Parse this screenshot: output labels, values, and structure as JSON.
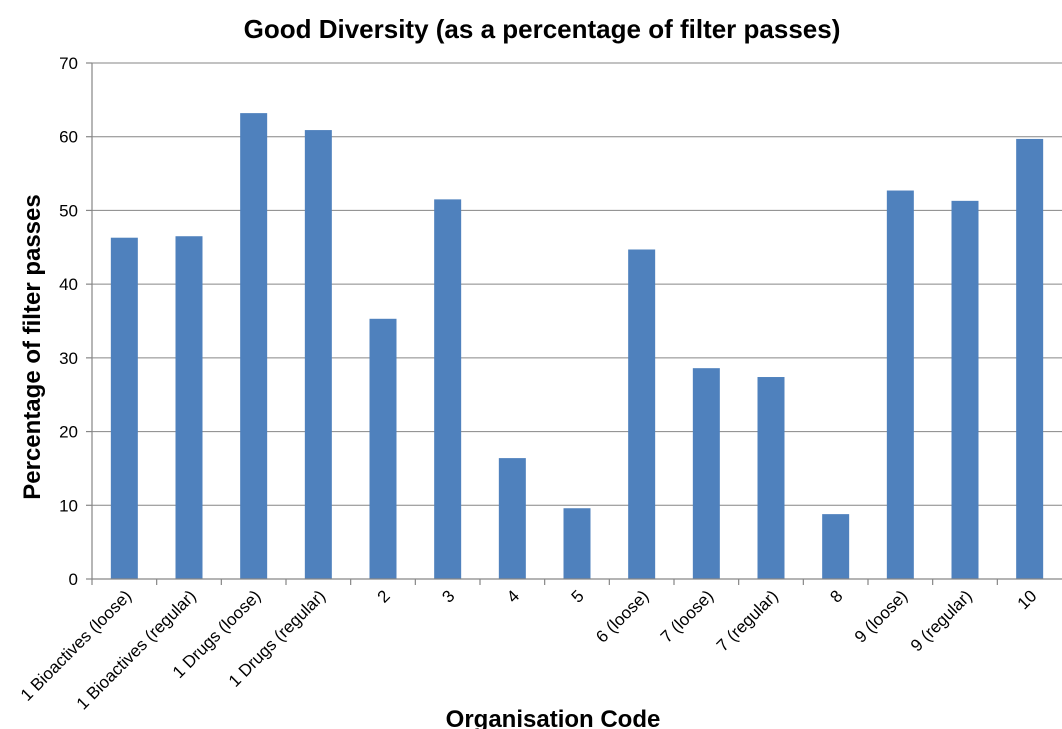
{
  "chart_data": {
    "type": "bar",
    "title": "Good Diversity (as a percentage of filter passes)",
    "xlabel": "Organisation Code",
    "ylabel": "Percentage of filter passes",
    "categories": [
      "1 Bioactives (loose)",
      "1 Bioactives (regular)",
      "1 Drugs (loose)",
      "1 Drugs (regular)",
      "2",
      "3",
      "4",
      "5",
      "6 (loose)",
      "7 (loose)",
      "7 (regular)",
      "8",
      "9 (loose)",
      "9 (regular)",
      "10"
    ],
    "values": [
      46.3,
      46.5,
      63.2,
      60.9,
      35.3,
      51.5,
      16.4,
      9.6,
      44.7,
      28.6,
      27.4,
      8.8,
      52.7,
      51.3,
      59.7
    ],
    "ylim": [
      0,
      70
    ],
    "yticks": [
      0,
      10,
      20,
      30,
      40,
      50,
      60,
      70
    ],
    "grid": true,
    "bar_color": "#4F81BD"
  }
}
